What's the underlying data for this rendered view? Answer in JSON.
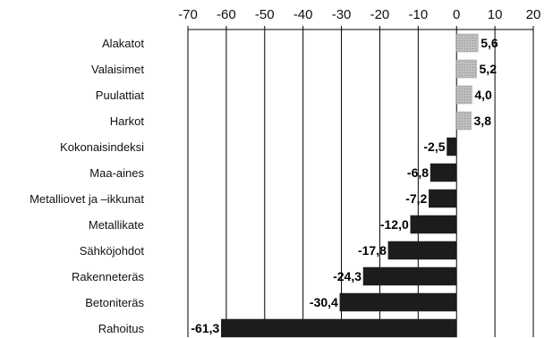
{
  "chart_data": {
    "type": "bar",
    "orientation": "horizontal",
    "title": "",
    "xlabel": "",
    "ylabel": "",
    "xlim": [
      -70,
      20
    ],
    "x_ticks": [
      -70,
      -60,
      -50,
      -40,
      -30,
      -20,
      -10,
      0,
      10,
      20
    ],
    "x_axis_position": "top",
    "grid": true,
    "legend": "none",
    "categories": [
      "Alakatot",
      "Valaisimet",
      "Puulattiat",
      "Harkot",
      "Kokonaisindeksi",
      "Maa-aines",
      "Metalliovet ja –ikkunat",
      "Metallikate",
      "Sähköjohdot",
      "Rakenneteräs",
      "Betoniteräs",
      "Rahoitus"
    ],
    "values": [
      5.6,
      5.2,
      4.0,
      3.8,
      -2.5,
      -6.8,
      -7.2,
      -12.0,
      -17.8,
      -24.3,
      -30.4,
      -61.3
    ],
    "value_labels": [
      "5,6",
      "5,2",
      "4,0",
      "3,8",
      "-2,5",
      "-6,8",
      "-7,2",
      "-12,0",
      "-17,8",
      "-24,3",
      "-30,4",
      "-61,3"
    ],
    "colors": {
      "positive": "#b5b5b5",
      "negative": "#1c1c1c",
      "grid": "#000000",
      "text": "#111111"
    }
  }
}
